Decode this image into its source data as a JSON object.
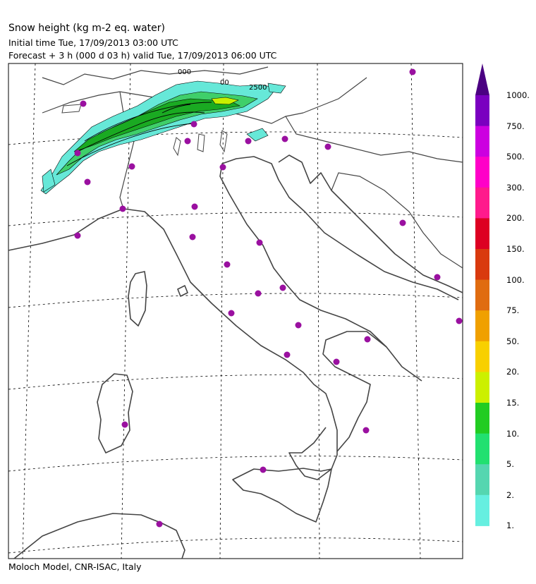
{
  "header": {
    "title": "Snow height (kg m-2 eq. water)",
    "initial": "Initial time  Tue, 17/09/2013  03:00 UTC",
    "forecast": "Forecast  +   3 h  (000 d 03 h)  valid Tue, 17/09/2013 06:00 UTC"
  },
  "footer": {
    "credit": "Moloch Model, CNR-ISAC, Italy"
  },
  "colorbar": {
    "labels": [
      "1000.",
      "750.",
      "500.",
      "300.",
      "200.",
      "150.",
      "100.",
      "75.",
      "50.",
      "20.",
      "15.",
      "10.",
      "5.",
      "2.",
      "1."
    ],
    "colors": [
      "#7a00c0",
      "#cc00e0",
      "#ff00c8",
      "#ff1a8c",
      "#dd0022",
      "#d93a0e",
      "#e06c10",
      "#f0a000",
      "#f8d000",
      "#ccf000",
      "#22cc22",
      "#22e070",
      "#55d6b0",
      "#66efe0"
    ],
    "top_color": "#4b0082"
  },
  "map": {
    "contour_labels": [
      "000",
      "00",
      "2500"
    ],
    "station_color": "#9a10a0",
    "snow_colors": {
      "light": "#66e8d8",
      "mid": "#3fcf6a",
      "dark": "#1aaa22",
      "high": "#c8f000"
    }
  }
}
